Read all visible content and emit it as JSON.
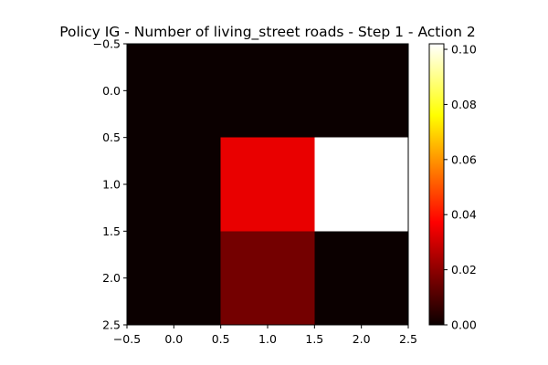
{
  "chart_data": {
    "type": "heatmap",
    "title": "Policy IG - Number of living_street roads - Step 1 - Action 2",
    "xlabel": "",
    "ylabel": "",
    "xlim": [
      -0.5,
      2.5
    ],
    "ylim": [
      2.5,
      -0.5
    ],
    "x_ticks": [
      "−0.5",
      "0.0",
      "0.5",
      "1.0",
      "1.5",
      "2.0",
      "2.5"
    ],
    "y_ticks": [
      "−0.5",
      "0.0",
      "0.5",
      "1.0",
      "1.5",
      "2.0",
      "2.5"
    ],
    "rows": [
      0,
      1,
      2
    ],
    "cols": [
      0,
      1,
      2
    ],
    "values": [
      [
        0.0,
        0.0,
        0.0
      ],
      [
        0.0,
        0.034,
        0.102
      ],
      [
        0.0,
        0.017,
        0.0
      ]
    ],
    "colorscale": "hot",
    "colorbar": {
      "min": 0.0,
      "max": 0.102,
      "ticks": [
        "0.00",
        "0.02",
        "0.04",
        "0.06",
        "0.08",
        "0.10"
      ]
    },
    "grid": false
  }
}
